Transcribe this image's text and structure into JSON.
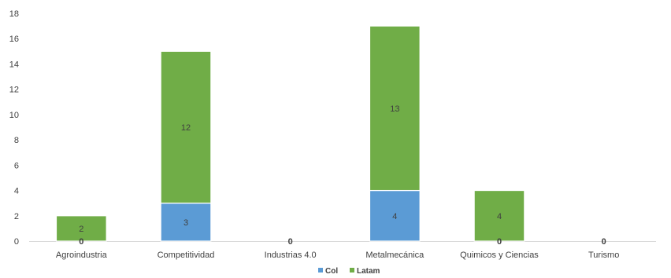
{
  "chart_data": {
    "type": "bar",
    "stacked": true,
    "categories": [
      "Agroindustria",
      "Competitividad",
      "Industrias 4.0",
      "Metalmecánica",
      "Quimicos y Ciencias",
      "Turismo"
    ],
    "series": [
      {
        "name": "Col",
        "color": "#5B9BD5",
        "values": [
          0,
          3,
          0,
          4,
          0,
          0
        ]
      },
      {
        "name": "Latam",
        "color": "#70AD47",
        "values": [
          2,
          12,
          0,
          13,
          4,
          0
        ]
      }
    ],
    "ylim": [
      0,
      18
    ],
    "yticks": [
      0,
      2,
      4,
      6,
      8,
      10,
      12,
      14,
      16,
      18
    ],
    "grid": false,
    "legend_position": "bottom"
  }
}
